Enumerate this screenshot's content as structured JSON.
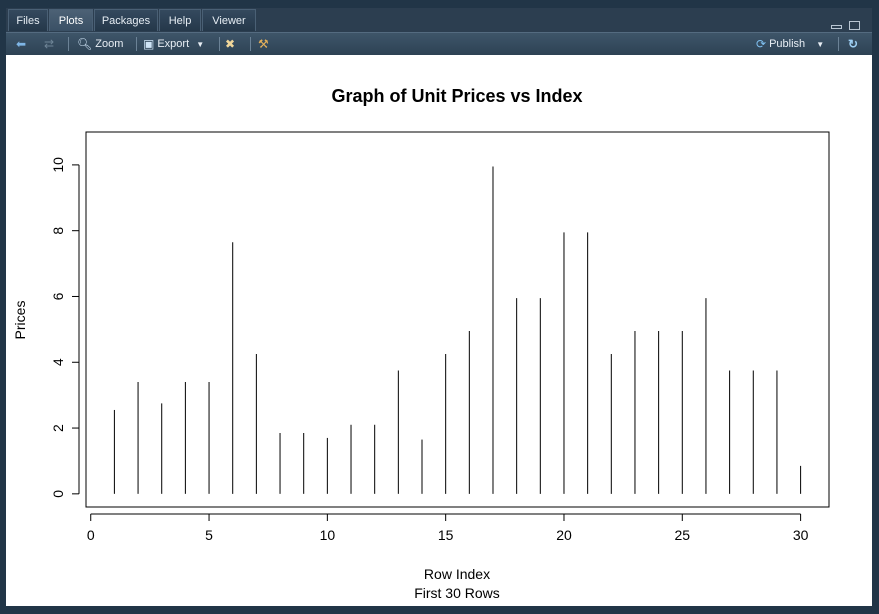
{
  "tabs": [
    {
      "label": "Files",
      "active": false
    },
    {
      "label": "Plots",
      "active": true
    },
    {
      "label": "Packages",
      "active": false
    },
    {
      "label": "Help",
      "active": false
    },
    {
      "label": "Viewer",
      "active": false
    }
  ],
  "toolbar": {
    "zoom_label": "Zoom",
    "export_label": "Export",
    "publish_label": "Publish",
    "icons": [
      "back-arrow-icon",
      "forward-arrow-icon",
      "magnifier-icon",
      "export-icon",
      "remove-plot-icon",
      "broom-icon",
      "publish-icon",
      "refresh-icon"
    ]
  },
  "colors": {
    "frame": "#213547",
    "toolbar": "#34495e",
    "plot_bg": "#ffffff",
    "ink": "#000000"
  },
  "chart_data": {
    "type": "bar",
    "title": "Graph of Unit Prices vs Index",
    "xlabel": "Row Index",
    "subtitle": "First 30 Rows",
    "ylabel": "Prices",
    "x": [
      1,
      2,
      3,
      4,
      5,
      6,
      7,
      8,
      9,
      10,
      11,
      12,
      13,
      14,
      15,
      16,
      17,
      18,
      19,
      20,
      21,
      22,
      23,
      24,
      25,
      26,
      27,
      28,
      29,
      30
    ],
    "values": [
      2.55,
      3.4,
      2.75,
      3.4,
      3.4,
      7.65,
      4.25,
      1.85,
      1.85,
      1.7,
      2.1,
      2.1,
      3.75,
      1.65,
      4.25,
      4.95,
      9.95,
      5.95,
      5.95,
      7.95,
      7.95,
      4.25,
      4.95,
      4.95,
      4.95,
      5.95,
      3.75,
      3.75,
      3.75,
      0.85
    ],
    "xlim": [
      -0.2,
      31.2
    ],
    "ylim": [
      -0.4,
      11.0
    ],
    "xticks": [
      0,
      5,
      10,
      15,
      20,
      25,
      30
    ],
    "yticks": [
      0,
      2,
      4,
      6,
      8,
      10
    ],
    "grid": false
  }
}
